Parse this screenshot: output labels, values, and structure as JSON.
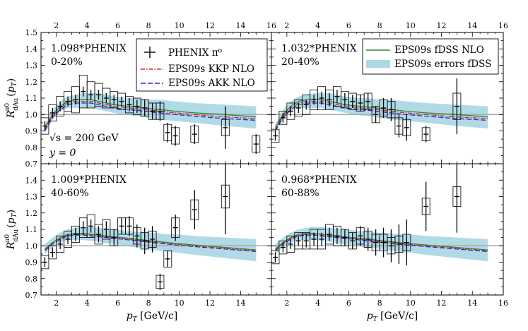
{
  "chart_data": {
    "type": "scatter",
    "xlabel": "p_T [GeV/c]",
    "ylabel": "R^{π0}_{dAu}(p_T)",
    "xlim": [
      1,
      16
    ],
    "ylim": [
      0.7,
      1.5
    ],
    "xticks": [
      2,
      4,
      6,
      8,
      10,
      12,
      14,
      16
    ],
    "yticks": [
      0.7,
      0.8,
      0.9,
      1.0,
      1.1,
      1.2,
      1.3,
      1.4,
      1.5
    ],
    "reference_line": 1.0,
    "colors": {
      "fdss": "#2e8b2e",
      "kkp": "#e02020",
      "akk": "#2828e0",
      "band": "#add8e6",
      "reference": "#a8a8a8",
      "data": "#000000"
    },
    "legend": {
      "data": "PHENIX π⁰",
      "kkp": "EPS09s KKP NLO",
      "akk": "EPS09s AKK NLO",
      "fdss": "EPS09s fDSS NLO",
      "band": "EPS09s errors fDSS"
    },
    "annotations": {
      "sqrt_s": "√s = 200 GeV",
      "rapidity": "y = 0"
    },
    "panels": [
      {
        "norm": "1.098*PHENIX",
        "centrality": "0-20%",
        "x": [
          1.25,
          1.75,
          2.25,
          2.75,
          3.25,
          3.75,
          4.25,
          4.75,
          5.25,
          5.75,
          6.25,
          6.75,
          7.25,
          7.75,
          8.25,
          8.75,
          9.25,
          9.75,
          11,
          13,
          15
        ],
        "y": [
          0.93,
          1.01,
          1.05,
          1.08,
          1.09,
          1.14,
          1.12,
          1.12,
          1.1,
          1.09,
          1.08,
          1.06,
          1.05,
          1.04,
          1.02,
          1.02,
          0.89,
          0.87,
          0.88,
          0.92,
          0.82
        ],
        "stat_err": [
          0.03,
          0.03,
          0.03,
          0.03,
          0.03,
          0.03,
          0.03,
          0.03,
          0.03,
          0.03,
          0.03,
          0.04,
          0.04,
          0.05,
          0.05,
          0.06,
          0.06,
          0.06,
          0.06,
          0.13,
          0.06
        ],
        "sys_err": [
          0.05,
          0.05,
          0.06,
          0.06,
          0.08,
          0.1,
          0.08,
          0.07,
          0.06,
          0.05,
          0.05,
          0.05,
          0.05,
          0.05,
          0.05,
          0.05,
          0.05,
          0.05,
          0.05,
          0.05,
          0.05
        ],
        "fdss": [
          0.92,
          1.0,
          1.05,
          1.08,
          1.09,
          1.09,
          1.09,
          1.08,
          1.07,
          1.06,
          1.055,
          1.05,
          1.045,
          1.04,
          1.035,
          1.03,
          1.025,
          1.02,
          1.01,
          1.0,
          0.985
        ],
        "kkp": [
          0.91,
          0.99,
          1.04,
          1.07,
          1.08,
          1.08,
          1.08,
          1.07,
          1.06,
          1.05,
          1.045,
          1.04,
          1.035,
          1.03,
          1.025,
          1.02,
          1.015,
          1.01,
          1.0,
          0.985,
          0.975
        ],
        "akk": [
          0.9,
          0.98,
          1.03,
          1.06,
          1.07,
          1.07,
          1.07,
          1.06,
          1.05,
          1.04,
          1.035,
          1.03,
          1.025,
          1.02,
          1.015,
          1.01,
          1.005,
          1.0,
          0.99,
          0.975,
          0.965
        ],
        "band_lo": [
          0.89,
          0.97,
          1.02,
          1.04,
          1.04,
          1.04,
          1.04,
          1.03,
          1.02,
          1.01,
          1.0,
          0.995,
          0.99,
          0.985,
          0.975,
          0.97,
          0.965,
          0.96,
          0.95,
          0.93,
          0.915
        ],
        "band_hi": [
          0.94,
          1.03,
          1.08,
          1.11,
          1.12,
          1.13,
          1.13,
          1.13,
          1.12,
          1.11,
          1.105,
          1.1,
          1.1,
          1.095,
          1.09,
          1.09,
          1.085,
          1.08,
          1.07,
          1.06,
          1.05
        ]
      },
      {
        "norm": "1.032*PHENIX",
        "centrality": "20-40%",
        "x": [
          1.25,
          1.75,
          2.25,
          2.75,
          3.25,
          3.75,
          4.25,
          4.75,
          5.25,
          5.75,
          6.25,
          6.75,
          7.25,
          7.75,
          8.25,
          8.75,
          9.25,
          9.75,
          11,
          13
        ],
        "y": [
          0.87,
          0.98,
          1.02,
          1.04,
          1.06,
          1.09,
          1.1,
          1.09,
          1.11,
          1.09,
          1.08,
          1.07,
          1.08,
          1.0,
          1.04,
          1.03,
          0.93,
          0.92,
          0.88,
          1.05
        ],
        "stat_err": [
          0.03,
          0.03,
          0.03,
          0.03,
          0.03,
          0.03,
          0.04,
          0.04,
          0.04,
          0.04,
          0.04,
          0.05,
          0.05,
          0.05,
          0.06,
          0.07,
          0.07,
          0.08,
          0.05,
          0.17
        ],
        "sys_err": [
          0.04,
          0.04,
          0.05,
          0.05,
          0.06,
          0.06,
          0.07,
          0.06,
          0.06,
          0.05,
          0.05,
          0.05,
          0.05,
          0.05,
          0.05,
          0.05,
          0.05,
          0.05,
          0.04,
          0.08
        ],
        "fdss": [
          0.92,
          1.0,
          1.05,
          1.08,
          1.09,
          1.09,
          1.09,
          1.08,
          1.07,
          1.06,
          1.055,
          1.05,
          1.045,
          1.04,
          1.035,
          1.03,
          1.025,
          1.02,
          1.01,
          1.0,
          0.985
        ],
        "kkp": [
          0.91,
          0.99,
          1.04,
          1.07,
          1.08,
          1.08,
          1.08,
          1.07,
          1.06,
          1.05,
          1.045,
          1.04,
          1.035,
          1.03,
          1.025,
          1.02,
          1.015,
          1.01,
          1.0,
          0.985,
          0.975
        ],
        "akk": [
          0.9,
          0.98,
          1.03,
          1.06,
          1.07,
          1.07,
          1.07,
          1.06,
          1.05,
          1.04,
          1.035,
          1.03,
          1.025,
          1.02,
          1.015,
          1.01,
          1.005,
          1.0,
          0.99,
          0.975,
          0.965
        ],
        "band_lo": [
          0.89,
          0.97,
          1.02,
          1.04,
          1.04,
          1.04,
          1.04,
          1.03,
          1.02,
          1.01,
          1.0,
          0.995,
          0.99,
          0.985,
          0.975,
          0.97,
          0.965,
          0.96,
          0.95,
          0.93,
          0.915
        ],
        "band_hi": [
          0.94,
          1.03,
          1.08,
          1.11,
          1.12,
          1.13,
          1.13,
          1.13,
          1.12,
          1.11,
          1.105,
          1.1,
          1.1,
          1.095,
          1.09,
          1.09,
          1.085,
          1.08,
          1.07,
          1.06,
          1.05
        ]
      },
      {
        "norm": "1.009*PHENIX",
        "centrality": "40-60%",
        "x": [
          1.25,
          1.75,
          2.25,
          2.75,
          3.25,
          3.75,
          4.25,
          4.75,
          5.25,
          5.75,
          6.25,
          6.75,
          7.25,
          7.75,
          8.25,
          8.75,
          9.25,
          9.75,
          11,
          13
        ],
        "y": [
          0.9,
          0.96,
          1.01,
          1.04,
          1.07,
          1.11,
          1.12,
          1.07,
          1.1,
          1.05,
          1.12,
          1.12,
          1.06,
          1.03,
          1.04,
          0.78,
          0.92,
          1.11,
          1.22,
          1.3
        ],
        "stat_err": [
          0.03,
          0.03,
          0.03,
          0.03,
          0.04,
          0.04,
          0.04,
          0.05,
          0.05,
          0.05,
          0.05,
          0.06,
          0.07,
          0.08,
          0.08,
          0.05,
          0.05,
          0.08,
          0.12,
          0.23
        ],
        "sys_err": [
          0.04,
          0.04,
          0.05,
          0.05,
          0.05,
          0.06,
          0.07,
          0.06,
          0.06,
          0.05,
          0.05,
          0.05,
          0.05,
          0.05,
          0.05,
          0.04,
          0.05,
          0.06,
          0.06,
          0.07
        ],
        "fdss": [
          0.98,
          1.02,
          1.05,
          1.07,
          1.075,
          1.075,
          1.07,
          1.065,
          1.06,
          1.055,
          1.05,
          1.045,
          1.04,
          1.035,
          1.03,
          1.025,
          1.02,
          1.015,
          1.005,
          0.99,
          0.975
        ],
        "kkp": [
          0.975,
          1.015,
          1.045,
          1.065,
          1.07,
          1.07,
          1.065,
          1.06,
          1.055,
          1.05,
          1.045,
          1.04,
          1.035,
          1.03,
          1.025,
          1.02,
          1.015,
          1.01,
          1.0,
          0.985,
          0.97
        ],
        "akk": [
          0.97,
          1.01,
          1.04,
          1.06,
          1.065,
          1.065,
          1.06,
          1.055,
          1.05,
          1.045,
          1.04,
          1.035,
          1.03,
          1.025,
          1.02,
          1.015,
          1.01,
          1.005,
          0.995,
          0.98,
          0.965
        ],
        "band_lo": [
          0.95,
          0.99,
          1.02,
          1.035,
          1.035,
          1.035,
          1.03,
          1.025,
          1.015,
          1.01,
          1.0,
          0.995,
          0.99,
          0.985,
          0.975,
          0.97,
          0.965,
          0.96,
          0.945,
          0.925,
          0.905
        ],
        "band_hi": [
          1.01,
          1.05,
          1.08,
          1.1,
          1.11,
          1.115,
          1.115,
          1.11,
          1.105,
          1.1,
          1.095,
          1.09,
          1.085,
          1.08,
          1.08,
          1.075,
          1.07,
          1.07,
          1.06,
          1.05,
          1.04
        ]
      },
      {
        "norm": "0.968*PHENIX",
        "centrality": "60-88%",
        "x": [
          1.25,
          1.75,
          2.25,
          2.75,
          3.25,
          3.75,
          4.25,
          4.75,
          5.25,
          5.75,
          6.25,
          6.75,
          7.25,
          7.75,
          8.25,
          8.75,
          9.25,
          9.75,
          11,
          13
        ],
        "y": [
          0.93,
          0.99,
          1.01,
          1.03,
          1.03,
          1.04,
          1.04,
          1.07,
          1.06,
          1.05,
          1.03,
          1.06,
          1.04,
          1.02,
          1.02,
          1.0,
          1.01,
          1.02,
          1.24,
          1.3
        ],
        "stat_err": [
          0.03,
          0.03,
          0.03,
          0.03,
          0.04,
          0.04,
          0.04,
          0.04,
          0.05,
          0.05,
          0.05,
          0.06,
          0.07,
          0.08,
          0.09,
          0.1,
          0.12,
          0.14,
          0.15,
          0.22
        ],
        "sys_err": [
          0.04,
          0.04,
          0.05,
          0.05,
          0.05,
          0.06,
          0.06,
          0.06,
          0.06,
          0.05,
          0.05,
          0.05,
          0.05,
          0.05,
          0.05,
          0.05,
          0.05,
          0.05,
          0.05,
          0.06
        ],
        "fdss": [
          0.98,
          1.02,
          1.05,
          1.07,
          1.075,
          1.075,
          1.07,
          1.065,
          1.06,
          1.055,
          1.05,
          1.045,
          1.04,
          1.035,
          1.03,
          1.025,
          1.02,
          1.015,
          1.005,
          0.99,
          0.975
        ],
        "kkp": [
          0.975,
          1.015,
          1.045,
          1.065,
          1.07,
          1.07,
          1.065,
          1.06,
          1.055,
          1.05,
          1.045,
          1.04,
          1.035,
          1.03,
          1.025,
          1.02,
          1.015,
          1.01,
          1.0,
          0.985,
          0.97
        ],
        "akk": [
          0.97,
          1.01,
          1.04,
          1.06,
          1.065,
          1.065,
          1.06,
          1.055,
          1.05,
          1.045,
          1.04,
          1.035,
          1.03,
          1.025,
          1.02,
          1.015,
          1.01,
          1.005,
          0.995,
          0.98,
          0.965
        ],
        "band_lo": [
          0.95,
          0.99,
          1.02,
          1.035,
          1.035,
          1.035,
          1.03,
          1.025,
          1.015,
          1.01,
          1.0,
          0.995,
          0.99,
          0.985,
          0.975,
          0.97,
          0.965,
          0.96,
          0.945,
          0.925,
          0.905
        ],
        "band_hi": [
          1.01,
          1.05,
          1.08,
          1.1,
          1.11,
          1.115,
          1.115,
          1.11,
          1.105,
          1.1,
          1.095,
          1.09,
          1.085,
          1.08,
          1.08,
          1.075,
          1.07,
          1.07,
          1.06,
          1.05,
          1.04
        ]
      }
    ],
    "theory_x": [
      1.25,
      1.75,
      2.25,
      2.75,
      3.25,
      3.75,
      4.25,
      4.75,
      5.25,
      5.75,
      6.25,
      6.75,
      7.25,
      7.75,
      8.25,
      8.75,
      9.25,
      9.75,
      11,
      13,
      15
    ]
  }
}
